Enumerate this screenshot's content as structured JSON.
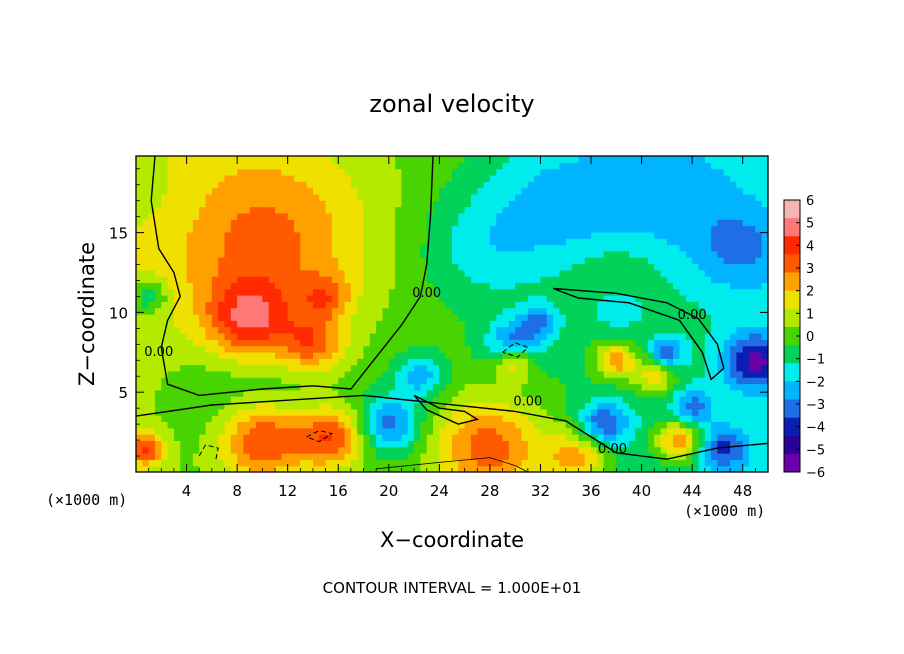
{
  "chart_data": {
    "type": "heatmap",
    "title": "zonal velocity",
    "xlabel": "X−coordinate",
    "ylabel": "Z−coordinate",
    "x_unit_label": "(×1000 m)",
    "y_unit_label": "(×1000 m)",
    "footnote": "CONTOUR INTERVAL = 1.000E+01",
    "xlim": [
      0,
      50
    ],
    "ylim": [
      0,
      19.8
    ],
    "x_ticks": [
      4,
      8,
      12,
      16,
      20,
      24,
      28,
      32,
      36,
      40,
      44,
      48
    ],
    "y_ticks": [
      5,
      10,
      15
    ],
    "colorbar": {
      "ticks": [
        6,
        5,
        4,
        3,
        2,
        1,
        0,
        -1,
        -2,
        -3,
        -4,
        -5,
        -6
      ],
      "tick_labels": [
        "6",
        "5",
        "4",
        "3",
        "2",
        "1",
        "0",
        "−1",
        "−2",
        "−3",
        "−4",
        "−5",
        "−6"
      ],
      "colors": [
        "#f5b5b5",
        "#ff7878",
        "#ff2a00",
        "#ff5a00",
        "#ffa000",
        "#f0e000",
        "#b4ea00",
        "#48d400",
        "#00d25a",
        "#00ecec",
        "#00b4ff",
        "#1e6ee6",
        "#0a1eb4",
        "#2a0096",
        "#6a00a8"
      ]
    },
    "contour_labels": [
      {
        "x": 1.8,
        "y": 7.5,
        "text": "0.00"
      },
      {
        "x": 23.0,
        "y": 11.2,
        "text": "0.00"
      },
      {
        "x": 31.0,
        "y": 4.4,
        "text": "0.00"
      },
      {
        "x": 37.7,
        "y": 1.4,
        "text": "0.00"
      },
      {
        "x": 44.0,
        "y": 9.8,
        "text": "0.00"
      }
    ],
    "anomalies": [
      {
        "x": 10.5,
        "y": 14.5,
        "r": 8.0,
        "v": 3.2
      },
      {
        "x": 9.0,
        "y": 9.5,
        "r": 3.5,
        "v": 4.5
      },
      {
        "x": 14.0,
        "y": 8.0,
        "r": 2.5,
        "v": 3.5
      },
      {
        "x": 15.0,
        "y": 11.0,
        "r": 2.0,
        "v": 2.5
      },
      {
        "x": 2.0,
        "y": 17.0,
        "r": 4.0,
        "v": -0.5
      },
      {
        "x": 27.0,
        "y": 14.0,
        "r": 5.0,
        "v": -1.6
      },
      {
        "x": 33.0,
        "y": 17.0,
        "r": 6.0,
        "v": -2.2
      },
      {
        "x": 42.0,
        "y": 18.0,
        "r": 7.0,
        "v": -2.0
      },
      {
        "x": 48.0,
        "y": 14.0,
        "r": 4.0,
        "v": -2.2
      },
      {
        "x": 1.0,
        "y": 11.0,
        "r": 1.5,
        "v": -2.5
      },
      {
        "x": 38.0,
        "y": 10.5,
        "r": 2.5,
        "v": -1.5
      },
      {
        "x": 9.0,
        "y": 4.5,
        "r": 7.0,
        "v": -1.5
      },
      {
        "x": 10.0,
        "y": 2.0,
        "r": 3.5,
        "v": 5.0
      },
      {
        "x": 15.5,
        "y": 2.2,
        "r": 2.8,
        "v": 4.5
      },
      {
        "x": 20.0,
        "y": 3.0,
        "r": 2.5,
        "v": -4.0
      },
      {
        "x": 22.5,
        "y": 6.0,
        "r": 2.0,
        "v": -3.0
      },
      {
        "x": 30.0,
        "y": 8.0,
        "r": 2.2,
        "v": -4.0
      },
      {
        "x": 30.0,
        "y": 7.0,
        "r": 1.6,
        "v": 4.0
      },
      {
        "x": 32.0,
        "y": 9.5,
        "r": 1.5,
        "v": -2.5
      },
      {
        "x": 28.0,
        "y": 1.5,
        "r": 4.5,
        "v": 4.5
      },
      {
        "x": 35.0,
        "y": 1.0,
        "r": 2.5,
        "v": 3.5
      },
      {
        "x": 37.0,
        "y": 3.0,
        "r": 2.0,
        "v": -4.0
      },
      {
        "x": 38.0,
        "y": 7.0,
        "r": 1.6,
        "v": 4.0
      },
      {
        "x": 41.0,
        "y": 6.0,
        "r": 1.6,
        "v": 3.0
      },
      {
        "x": 42.0,
        "y": 7.5,
        "r": 1.3,
        "v": -3.5
      },
      {
        "x": 44.0,
        "y": 4.0,
        "r": 1.6,
        "v": -3.0
      },
      {
        "x": 43.0,
        "y": 2.0,
        "r": 1.8,
        "v": 4.5
      },
      {
        "x": 46.5,
        "y": 1.5,
        "r": 2.0,
        "v": -3.5
      },
      {
        "x": 49.0,
        "y": 7.0,
        "r": 2.5,
        "v": -4.5
      },
      {
        "x": 38.0,
        "y": 12.0,
        "r": 3.0,
        "v": 1.2
      },
      {
        "x": 0.8,
        "y": 1.5,
        "r": 1.5,
        "v": 4.0
      }
    ],
    "contours": [
      {
        "dashed": false,
        "w": 1.4,
        "points": [
          [
            1.5,
            19.8
          ],
          [
            1.2,
            17
          ],
          [
            1.8,
            14
          ],
          [
            3.0,
            12.5
          ],
          [
            3.5,
            11
          ],
          [
            2.5,
            9.5
          ],
          [
            2.0,
            7.8
          ],
          [
            2.5,
            5.5
          ],
          [
            5,
            4.8
          ],
          [
            10,
            5.2
          ],
          [
            14,
            5.4
          ],
          [
            17,
            5.2
          ],
          [
            18,
            6.2
          ],
          [
            21,
            9.2
          ],
          [
            22.5,
            11.0
          ],
          [
            23,
            13
          ],
          [
            23.3,
            16
          ],
          [
            23.5,
            19.8
          ]
        ]
      },
      {
        "dashed": false,
        "w": 1.4,
        "points": [
          [
            0,
            3.5
          ],
          [
            6,
            4.2
          ],
          [
            12,
            4.5
          ],
          [
            18,
            4.8
          ],
          [
            24,
            4.3
          ],
          [
            30,
            3.8
          ],
          [
            34,
            3.2
          ],
          [
            38,
            1.2
          ],
          [
            42,
            0.8
          ],
          [
            46,
            1.5
          ],
          [
            50,
            1.8
          ]
        ]
      },
      {
        "dashed": false,
        "w": 1.4,
        "points": [
          [
            33,
            11.5
          ],
          [
            38,
            11.2
          ],
          [
            42,
            10.6
          ],
          [
            44.5,
            9.6
          ],
          [
            46,
            8.0
          ],
          [
            46.5,
            6.5
          ],
          [
            45.5,
            5.8
          ],
          [
            44.8,
            7.5
          ],
          [
            43,
            9.5
          ],
          [
            39,
            10.6
          ],
          [
            35,
            10.9
          ],
          [
            33,
            11.5
          ]
        ]
      },
      {
        "dashed": false,
        "w": 1.4,
        "points": [
          [
            22,
            4.8
          ],
          [
            24,
            4.0
          ],
          [
            26,
            3.8
          ],
          [
            27,
            3.3
          ],
          [
            25.5,
            3.0
          ],
          [
            23,
            3.9
          ],
          [
            22,
            4.8
          ]
        ]
      },
      {
        "dashed": false,
        "w": 0.8,
        "points": [
          [
            19,
            0.2
          ],
          [
            24,
            0.6
          ],
          [
            28,
            0.9
          ],
          [
            30,
            0.4
          ],
          [
            31,
            0.0
          ]
        ]
      },
      {
        "dashed": true,
        "w": 1.0,
        "points": [
          [
            5,
            1.0
          ],
          [
            5.5,
            1.7
          ],
          [
            6.5,
            1.5
          ],
          [
            6.3,
            0.7
          ]
        ]
      },
      {
        "dashed": true,
        "w": 1.0,
        "points": [
          [
            13.5,
            2.2
          ],
          [
            14.5,
            2.6
          ],
          [
            15.5,
            2.4
          ],
          [
            14.5,
            1.9
          ],
          [
            13.5,
            2.2
          ]
        ]
      },
      {
        "dashed": true,
        "w": 1.0,
        "points": [
          [
            29,
            7.5
          ],
          [
            30,
            8.1
          ],
          [
            31,
            7.8
          ],
          [
            30.2,
            7.2
          ],
          [
            29,
            7.5
          ]
        ]
      }
    ]
  }
}
